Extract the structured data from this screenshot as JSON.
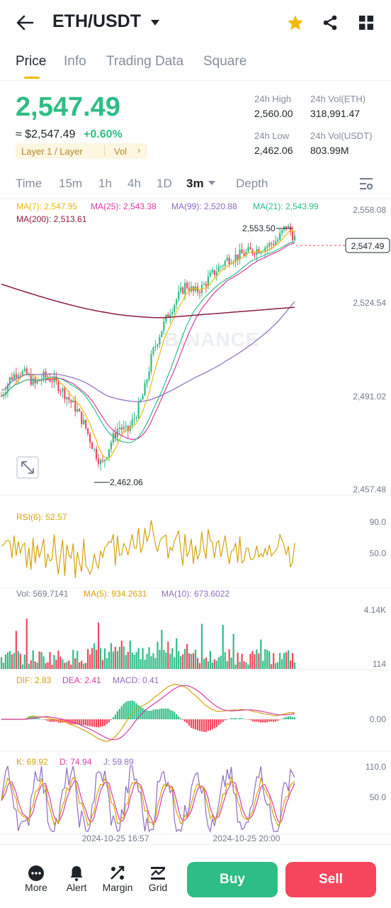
{
  "header": {
    "pair": "ETH/USDT"
  },
  "tabs": [
    {
      "label": "Price"
    },
    {
      "label": "Info"
    },
    {
      "label": "Trading Data"
    },
    {
      "label": "Square"
    }
  ],
  "ticker": {
    "last_price": "2,547.49",
    "fiat_price": "≈ $2,547.49",
    "change_pct": "+0.60%",
    "tag_layer": "Layer 1 / Layer",
    "tag_vol": "Vol",
    "high_label": "24h High",
    "high_value": "2,560.00",
    "volbase_label": "24h Vol(ETH)",
    "volbase_value": "318,991.47",
    "low_label": "24h Low",
    "low_value": "2,462.06",
    "volquote_label": "24h Vol(USDT)",
    "volquote_value": "803.99M"
  },
  "timeframes": [
    {
      "label": "Time"
    },
    {
      "label": "15m"
    },
    {
      "label": "1h"
    },
    {
      "label": "4h"
    },
    {
      "label": "1D"
    },
    {
      "label": "3m"
    },
    {
      "label": "Depth"
    }
  ],
  "selected_timeframe": "3m",
  "chart_data": [
    {
      "type": "candlestick",
      "ma_legend": [
        {
          "label": "MA(7): 2,547.95",
          "color": "#f0b90b"
        },
        {
          "label": "MA(25): 2,543.38",
          "color": "#d63da6"
        },
        {
          "label": "MA(99): 2,520.88",
          "color": "#8e6bbf"
        },
        {
          "label": "MA(21): 2,543.99",
          "color": "#2ebd85"
        },
        {
          "label": "MA(200): 2,513.61",
          "color": "#8b1a3c"
        }
      ],
      "y_ticks": [
        "2,558.08",
        "2,524.54",
        "2,491.02",
        "2,457.48"
      ],
      "ylim": [
        2457.48,
        2558.08
      ],
      "high_marker": "2,553.50",
      "low_marker": "2,462.06",
      "last_price_marker": "2,547.49",
      "watermark": "BINANCE",
      "close_path": [
        2491.0,
        2497.0,
        2500.0,
        2498.5,
        2495.0,
        2498.0,
        2497.0,
        2494.0,
        2490.0,
        2486.0,
        2480.0,
        2472.0,
        2466.0,
        2474.0,
        2480.0,
        2478.0,
        2484.0,
        2492.0,
        2506.0,
        2514.0,
        2521.0,
        2526.0,
        2531.0,
        2528.0,
        2530.0,
        2534.0,
        2537.0,
        2540.0,
        2541.0,
        2542.0,
        2543.0,
        2544.0,
        2545.0,
        2547.0,
        2552.0,
        2547.49
      ]
    },
    {
      "type": "line",
      "indicator": "RSI",
      "legend": "RSI(6): 52.57",
      "y_ticks": [
        "90.0",
        "50.0"
      ]
    },
    {
      "type": "bar",
      "indicator": "Volume",
      "legend": [
        {
          "label": "Vol: 569.7141",
          "color": "#707a8a"
        },
        {
          "label": "MA(5): 934.2631",
          "color": "#d4a20b"
        },
        {
          "label": "MA(10): 673.6022",
          "color": "#8e6bbf"
        }
      ],
      "y_ticks": [
        "4.14K",
        "114"
      ]
    },
    {
      "type": "line",
      "indicator": "MACD",
      "legend": [
        {
          "label": "DIF: 2.83",
          "color": "#d4a20b"
        },
        {
          "label": "DEA: 2.41",
          "color": "#d63da6"
        },
        {
          "label": "MACD: 0.41",
          "color": "#8e6bbf"
        }
      ],
      "y_ticks": [
        "0.00"
      ]
    },
    {
      "type": "line",
      "indicator": "KDJ",
      "legend": [
        {
          "label": "K: 69.92",
          "color": "#d4a20b"
        },
        {
          "label": "D: 74.94",
          "color": "#d63da6"
        },
        {
          "label": "J: 59.89",
          "color": "#8e6bbf"
        }
      ],
      "y_ticks": [
        "110.0",
        "50.0"
      ],
      "x_ticks": [
        "2024-10-25 16:57",
        "2024-10-25 20:00"
      ]
    }
  ],
  "bottom_nav": [
    {
      "label": "More",
      "icon": "more-icon"
    },
    {
      "label": "Alert",
      "icon": "bell-icon"
    },
    {
      "label": "Margin",
      "icon": "margin-icon"
    },
    {
      "label": "Grid",
      "icon": "grid-bot-icon"
    }
  ],
  "actions": {
    "buy": "Buy",
    "sell": "Sell"
  },
  "colors": {
    "up": "#2ebd85",
    "down": "#f6465d",
    "brand": "#f0b90b",
    "text": "#1e2329",
    "muted": "#848e9c"
  }
}
